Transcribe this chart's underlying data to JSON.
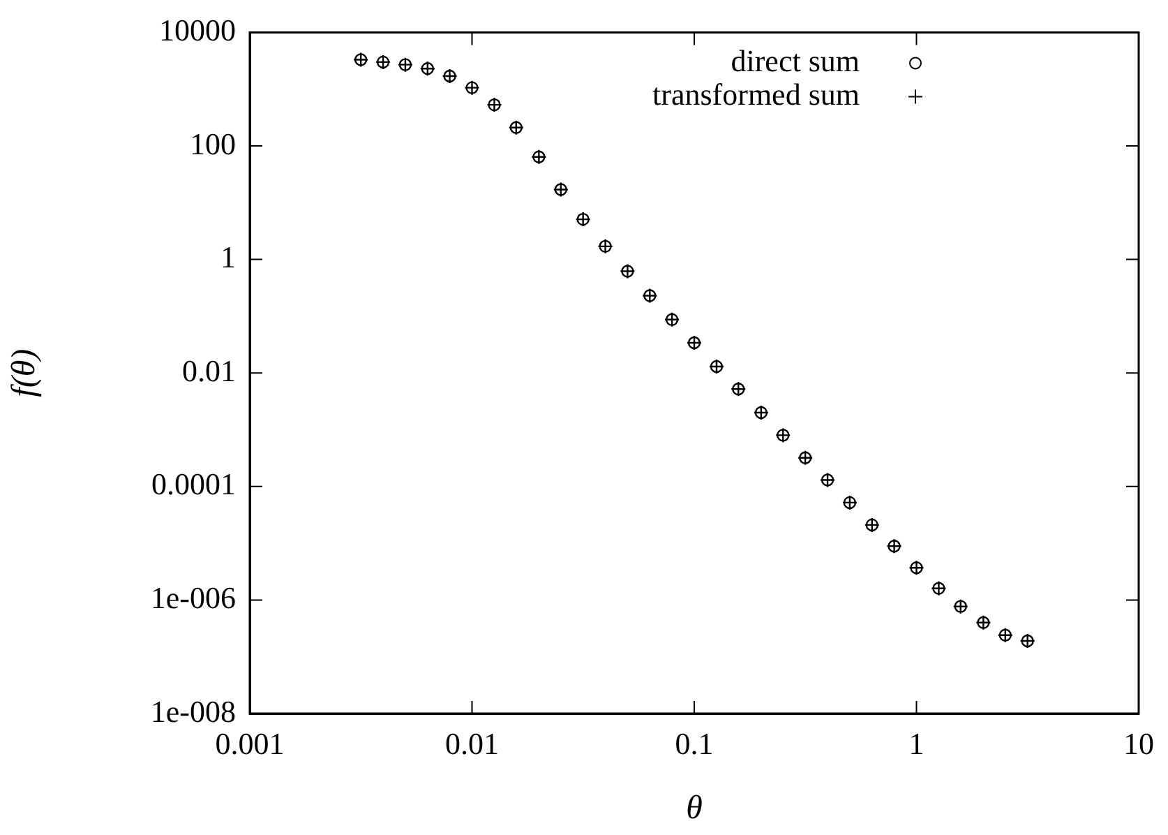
{
  "chart_data": {
    "type": "scatter",
    "xlabel": "θ",
    "ylabel": "f(θ)",
    "log": "xy",
    "legend": "top right",
    "xlim": [
      0.001,
      10
    ],
    "xticks": [
      0.001,
      0.01,
      0.1,
      1,
      10
    ],
    "ylim": [
      1e-08,
      10000
    ],
    "yticks": [
      {
        "value": 1e-08,
        "label": "1e-008"
      },
      {
        "value": 1e-06,
        "label": "1e-006"
      },
      0.0001,
      0.01,
      1,
      100,
      10000
    ],
    "x": [
      0.00316,
      0.00398,
      0.00501,
      0.00631,
      0.00794,
      0.01,
      0.0126,
      0.0158,
      0.02,
      0.0251,
      0.0316,
      0.0398,
      0.0501,
      0.0631,
      0.0794,
      0.1,
      0.126,
      0.158,
      0.2,
      0.251,
      0.316,
      0.398,
      0.501,
      0.631,
      0.794,
      1,
      1.26,
      1.58,
      2,
      2.51,
      3.16
    ],
    "series": [
      {
        "name": "direct sum",
        "color": "#000000",
        "marker": "circle",
        "values": [
          3300,
          3000,
          2700,
          2300,
          1700,
          1060,
          530,
          210,
          64,
          17,
          5.1,
          1.7,
          0.62,
          0.23,
          0.087,
          0.034,
          0.013,
          0.0052,
          0.002,
          0.0008,
          0.00032,
          0.00013,
          5.2e-05,
          2.1e-05,
          8.9e-06,
          3.7e-06,
          1.6e-06,
          7.7e-07,
          4e-07,
          2.4e-07,
          1.9e-07
        ]
      },
      {
        "name": "transformed sum",
        "color": "#000000",
        "marker": "cross",
        "values": [
          3300,
          3000,
          2700,
          2300,
          1700,
          1060,
          530,
          210,
          64,
          17,
          5.1,
          1.7,
          0.62,
          0.23,
          0.087,
          0.034,
          0.013,
          0.0052,
          0.002,
          0.0008,
          0.00032,
          0.00013,
          5.2e-05,
          2.1e-05,
          8.9e-06,
          3.7e-06,
          1.6e-06,
          7.7e-07,
          4e-07,
          2.4e-07,
          1.9e-07
        ]
      }
    ]
  }
}
